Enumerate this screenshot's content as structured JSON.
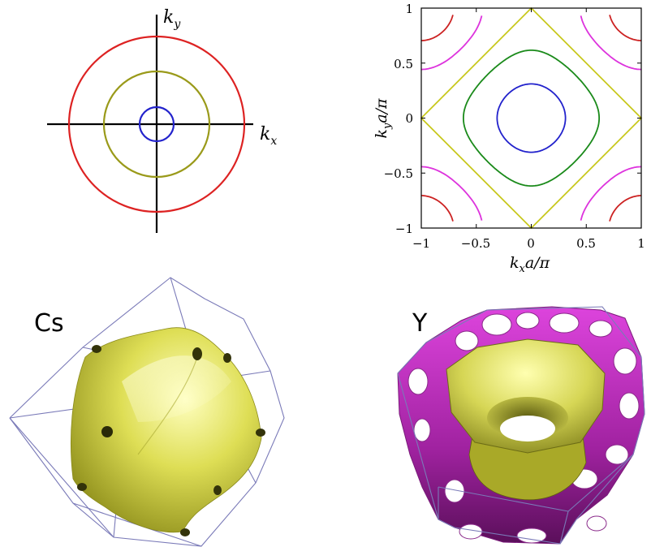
{
  "panel_a": {
    "axis_x": "k",
    "axis_x_sub": "x",
    "axis_y": "k",
    "axis_y_sub": "y",
    "circles": [
      {
        "name": "small",
        "color": "#2222cc"
      },
      {
        "name": "medium",
        "color": "#9a9a1a"
      },
      {
        "name": "large",
        "color": "#dd2222"
      }
    ]
  },
  "panel_b": {
    "xlabel_k": "k",
    "xlabel_sub": "x",
    "xlabel_rest": "a/π",
    "ylabel_k": "k",
    "ylabel_sub": "y",
    "ylabel_rest": "a/π",
    "xticks": [
      "−1",
      "−0.5",
      "0",
      "0.5",
      "1"
    ],
    "yticks": [
      "1",
      "0.5",
      "0",
      "−0.5",
      "−1"
    ],
    "xlim": [
      -1,
      1
    ],
    "ylim": [
      -1,
      1
    ],
    "contour_colors": {
      "blue": "#2222cc",
      "green": "#1a8a1a",
      "yellow": "#c8c81e",
      "magenta": "#dd33dd",
      "red": "#cc2222"
    }
  },
  "panel_c": {
    "label": "Cs",
    "surface_color": "#d8d84a",
    "frame_color": "#7a7ab8"
  },
  "panel_d": {
    "label": "Y",
    "inner_color": "#d8d84a",
    "outer_color": "#b02ab0",
    "frame_color": "#7a7ab8"
  }
}
